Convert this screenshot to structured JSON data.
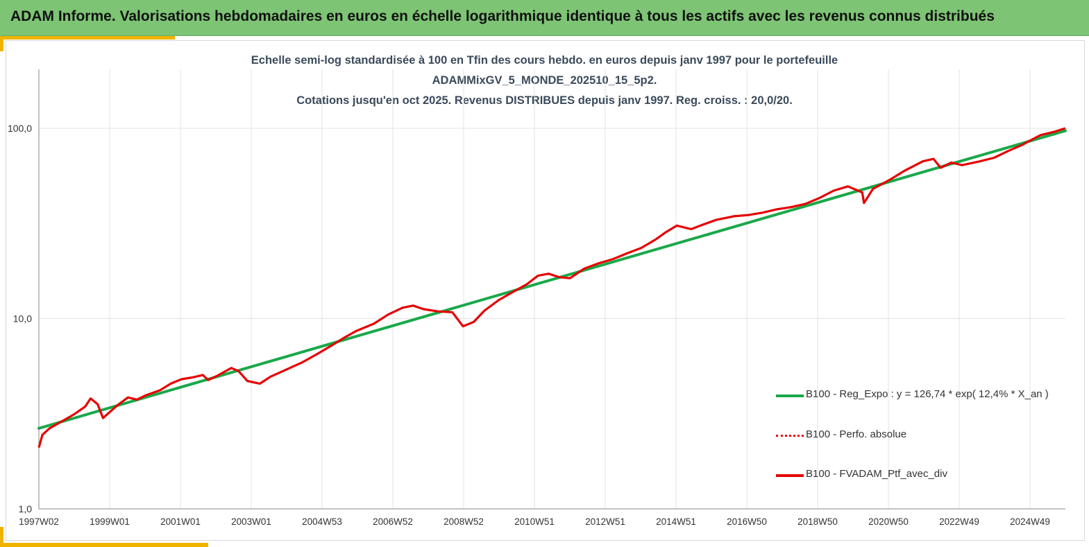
{
  "header": {
    "title": "ADAM Informe. Valorisations hebdomadaires en euros en échelle logarithmique identique à tous les actifs avec les revenus connus distribués"
  },
  "colors": {
    "header_bg": "#7dc475",
    "accent": "#f0b400",
    "regression": "#1aa84a",
    "portfolio": "#e60000"
  },
  "chart_data": {
    "type": "line",
    "title_lines": [
      "Echelle semi-log standardisée à 100 en Tfin des cours hebdo.  en euros depuis janv 1997 pour le portefeuille",
      "ADAMMixGV_5_MONDE_202510_15_5p2.",
      "Cotations  jusqu'en oct 2025. Revenus DISTRIBUES depuis janv 1997. Reg. croiss. : 20,0/20."
    ],
    "y_scale": "log",
    "ylim": [
      1,
      100
    ],
    "y_ticks": [
      "1,0",
      "10,0",
      "100,0"
    ],
    "x_ticks": [
      "1997W02",
      "1999W01",
      "2001W01",
      "2003W01",
      "2004W53",
      "2006W52",
      "2008W52",
      "2010W51",
      "2012W51",
      "2014W51",
      "2016W50",
      "2018W50",
      "2020W50",
      "2022W49",
      "2024W49"
    ],
    "grid": "vertical",
    "legend_position": "right",
    "series": [
      {
        "name": "B100 - Reg_Expo : y = 126,74 * exp( 12,4% *  X_an )",
        "style": "solid",
        "color": "#1aa84a",
        "x": [
          1997.0,
          2025.8
        ],
        "y": [
          2.65,
          97
        ]
      },
      {
        "name": "B100 - Perfo. absolue",
        "style": "dotted",
        "color": "#e60000"
      },
      {
        "name": "B100 - FVADAM_Ptf_avec_div",
        "style": "solid",
        "color": "#e60000",
        "x": [
          1997.0,
          1997.1,
          1997.3,
          1997.6,
          1998.0,
          1998.3,
          1998.45,
          1998.65,
          1998.8,
          1999.2,
          1999.5,
          1999.75,
          2000.0,
          2000.4,
          2000.7,
          2001.0,
          2001.3,
          2001.6,
          2001.75,
          2002.0,
          2002.4,
          2002.6,
          2002.85,
          2003.2,
          2003.5,
          2003.9,
          2004.4,
          2004.8,
          2005.2,
          2005.6,
          2005.9,
          2006.4,
          2006.8,
          2007.2,
          2007.5,
          2007.8,
          2008.2,
          2008.6,
          2008.9,
          2009.2,
          2009.5,
          2009.9,
          2010.3,
          2010.7,
          2011.0,
          2011.3,
          2011.6,
          2011.9,
          2012.3,
          2012.7,
          2013.1,
          2013.5,
          2013.9,
          2014.3,
          2014.6,
          2014.9,
          2015.3,
          2015.6,
          2016.0,
          2016.5,
          2016.9,
          2017.3,
          2017.7,
          2018.1,
          2018.5,
          2018.9,
          2019.3,
          2019.7,
          2020.1,
          2020.15,
          2020.4,
          2020.9,
          2021.3,
          2021.8,
          2022.1,
          2022.3,
          2022.6,
          2022.9,
          2023.4,
          2023.8,
          2024.2,
          2024.6,
          2024.8,
          2025.1,
          2025.5,
          2025.8
        ],
        "y": [
          2.1,
          2.45,
          2.65,
          2.85,
          3.15,
          3.45,
          3.8,
          3.55,
          3.0,
          3.5,
          3.85,
          3.75,
          3.95,
          4.2,
          4.55,
          4.8,
          4.9,
          5.05,
          4.75,
          5.0,
          5.5,
          5.3,
          4.7,
          4.55,
          4.95,
          5.35,
          5.9,
          6.5,
          7.2,
          8.0,
          8.6,
          9.4,
          10.5,
          11.4,
          11.7,
          11.2,
          10.9,
          10.8,
          9.1,
          9.6,
          11.0,
          12.5,
          13.8,
          15.2,
          16.8,
          17.2,
          16.5,
          16.3,
          18.3,
          19.5,
          20.5,
          22.0,
          23.5,
          26.0,
          28.5,
          30.8,
          29.5,
          31.0,
          33.0,
          34.5,
          35.0,
          36.0,
          37.5,
          38.5,
          40.0,
          43.0,
          47.0,
          49.5,
          46.0,
          40.5,
          48.0,
          54.0,
          60.0,
          67.0,
          69.0,
          62.0,
          66.0,
          64.0,
          67.0,
          70.0,
          76.0,
          82.0,
          86.0,
          92.0,
          96.0,
          100.0
        ]
      }
    ]
  }
}
